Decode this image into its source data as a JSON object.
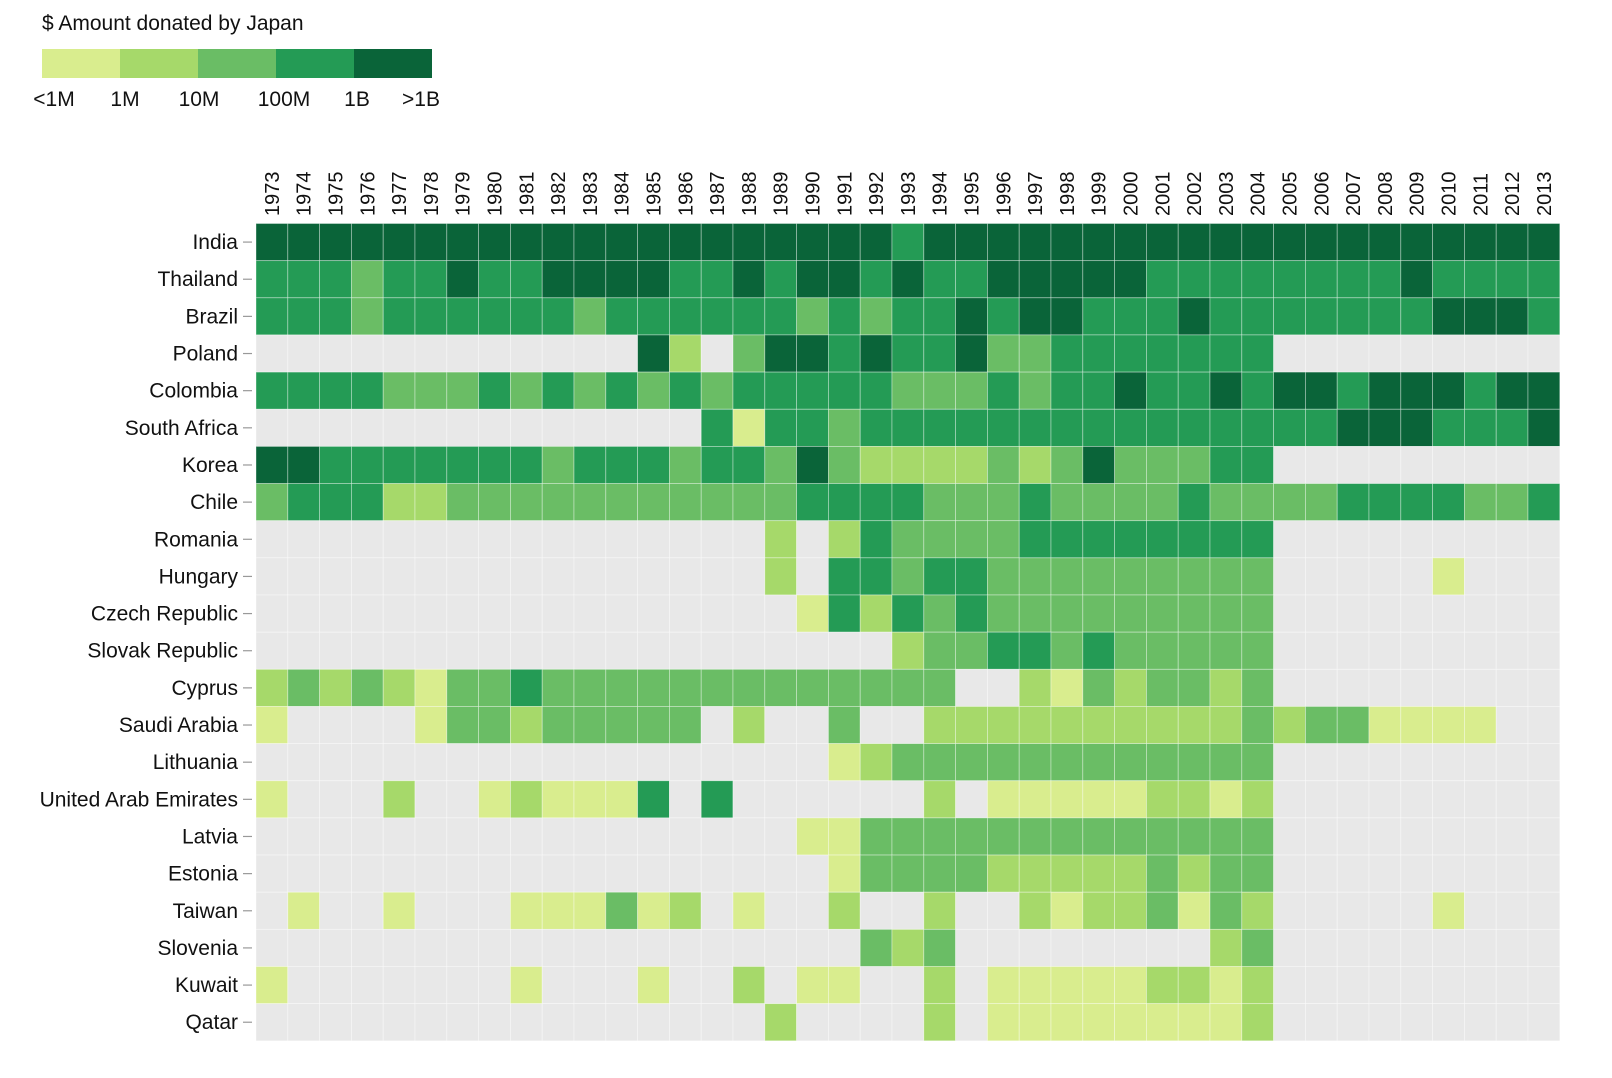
{
  "chart_data": {
    "type": "heatmap",
    "legend": {
      "title": "$ Amount donated by Japan",
      "labels": [
        "<1M",
        "1M",
        "10M",
        "100M",
        "1B",
        ">1B"
      ],
      "colors": [
        "#d9ed8e",
        "#a6d96a",
        "#6abd65",
        "#249b55",
        "#0a6439"
      ],
      "empty_color": "#e8e8e8"
    },
    "years": [
      "1973",
      "1974",
      "1975",
      "1976",
      "1977",
      "1978",
      "1979",
      "1980",
      "1981",
      "1982",
      "1983",
      "1984",
      "1985",
      "1986",
      "1987",
      "1988",
      "1989",
      "1990",
      "1991",
      "1992",
      "1993",
      "1994",
      "1995",
      "1996",
      "1997",
      "1998",
      "1999",
      "2000",
      "2001",
      "2002",
      "2003",
      "2004",
      "2005",
      "2006",
      "2007",
      "2008",
      "2009",
      "2010",
      "2011",
      "2012",
      "2013"
    ],
    "value_encoding": "0 = no data, 1 = <1M, 2 = 1M-10M, 3 = 10M-100M, 4 = 100M-1B, 5 = >1B",
    "rows": [
      {
        "country": "India",
        "values": [
          5,
          5,
          5,
          5,
          5,
          5,
          5,
          5,
          5,
          5,
          5,
          5,
          5,
          5,
          5,
          5,
          5,
          5,
          5,
          5,
          4,
          5,
          5,
          5,
          5,
          5,
          5,
          5,
          5,
          5,
          5,
          5,
          5,
          5,
          5,
          5,
          5,
          5,
          5,
          5,
          5
        ]
      },
      {
        "country": "Thailand",
        "values": [
          4,
          4,
          4,
          3,
          4,
          4,
          5,
          4,
          4,
          5,
          5,
          5,
          5,
          4,
          4,
          5,
          4,
          5,
          5,
          4,
          5,
          4,
          4,
          5,
          5,
          5,
          5,
          5,
          4,
          4,
          4,
          4,
          4,
          4,
          4,
          4,
          5,
          4,
          4,
          4,
          4
        ]
      },
      {
        "country": "Brazil",
        "values": [
          4,
          4,
          4,
          3,
          4,
          4,
          4,
          4,
          4,
          4,
          3,
          4,
          4,
          4,
          4,
          4,
          4,
          3,
          4,
          3,
          4,
          4,
          5,
          4,
          5,
          5,
          4,
          4,
          4,
          5,
          4,
          4,
          4,
          4,
          4,
          4,
          4,
          5,
          5,
          5,
          4
        ]
      },
      {
        "country": "Poland",
        "values": [
          0,
          0,
          0,
          0,
          0,
          0,
          0,
          0,
          0,
          0,
          0,
          0,
          5,
          2,
          0,
          3,
          5,
          5,
          4,
          5,
          4,
          4,
          5,
          3,
          3,
          4,
          4,
          4,
          4,
          4,
          4,
          4,
          0,
          0,
          0,
          0,
          0,
          0,
          0,
          0,
          0
        ]
      },
      {
        "country": "Colombia",
        "values": [
          4,
          4,
          4,
          4,
          3,
          3,
          3,
          4,
          3,
          4,
          3,
          4,
          3,
          4,
          3,
          4,
          4,
          4,
          4,
          4,
          3,
          3,
          3,
          4,
          3,
          4,
          4,
          5,
          4,
          4,
          5,
          4,
          5,
          5,
          4,
          5,
          5,
          5,
          4,
          5,
          5
        ]
      },
      {
        "country": "South Africa",
        "values": [
          0,
          0,
          0,
          0,
          0,
          0,
          0,
          0,
          0,
          0,
          0,
          0,
          0,
          0,
          4,
          1,
          4,
          4,
          3,
          4,
          4,
          4,
          4,
          4,
          4,
          4,
          4,
          4,
          4,
          4,
          4,
          4,
          4,
          4,
          5,
          5,
          5,
          4,
          4,
          4,
          5
        ]
      },
      {
        "country": "Korea",
        "values": [
          5,
          5,
          4,
          4,
          4,
          4,
          4,
          4,
          4,
          3,
          4,
          4,
          4,
          3,
          4,
          4,
          3,
          5,
          3,
          2,
          2,
          2,
          2,
          3,
          2,
          3,
          5,
          3,
          3,
          3,
          4,
          4,
          0,
          0,
          0,
          0,
          0,
          0,
          0,
          0,
          0
        ]
      },
      {
        "country": "Chile",
        "values": [
          3,
          4,
          4,
          4,
          2,
          2,
          3,
          3,
          3,
          3,
          3,
          3,
          3,
          3,
          3,
          3,
          3,
          4,
          4,
          4,
          4,
          3,
          3,
          3,
          4,
          3,
          3,
          3,
          3,
          4,
          3,
          3,
          3,
          3,
          4,
          4,
          4,
          4,
          3,
          3,
          4
        ]
      },
      {
        "country": "Romania",
        "values": [
          0,
          0,
          0,
          0,
          0,
          0,
          0,
          0,
          0,
          0,
          0,
          0,
          0,
          0,
          0,
          0,
          2,
          0,
          2,
          4,
          3,
          3,
          3,
          3,
          4,
          4,
          4,
          4,
          4,
          4,
          4,
          4,
          0,
          0,
          0,
          0,
          0,
          0,
          0,
          0,
          0
        ]
      },
      {
        "country": "Hungary",
        "values": [
          0,
          0,
          0,
          0,
          0,
          0,
          0,
          0,
          0,
          0,
          0,
          0,
          0,
          0,
          0,
          0,
          2,
          0,
          4,
          4,
          3,
          4,
          4,
          3,
          3,
          3,
          3,
          3,
          3,
          3,
          3,
          3,
          0,
          0,
          0,
          0,
          0,
          1,
          0,
          0,
          0
        ]
      },
      {
        "country": "Czech Republic",
        "values": [
          0,
          0,
          0,
          0,
          0,
          0,
          0,
          0,
          0,
          0,
          0,
          0,
          0,
          0,
          0,
          0,
          0,
          1,
          4,
          2,
          4,
          3,
          4,
          3,
          3,
          3,
          3,
          3,
          3,
          3,
          3,
          3,
          0,
          0,
          0,
          0,
          0,
          0,
          0,
          0,
          0
        ]
      },
      {
        "country": "Slovak Republic",
        "values": [
          0,
          0,
          0,
          0,
          0,
          0,
          0,
          0,
          0,
          0,
          0,
          0,
          0,
          0,
          0,
          0,
          0,
          0,
          0,
          0,
          2,
          3,
          3,
          4,
          4,
          3,
          4,
          3,
          3,
          3,
          3,
          3,
          0,
          0,
          0,
          0,
          0,
          0,
          0,
          0,
          0
        ]
      },
      {
        "country": "Cyprus",
        "values": [
          2,
          3,
          2,
          3,
          2,
          1,
          3,
          3,
          4,
          3,
          3,
          3,
          3,
          3,
          3,
          3,
          3,
          3,
          3,
          3,
          3,
          3,
          0,
          0,
          2,
          1,
          3,
          2,
          3,
          3,
          2,
          3,
          0,
          0,
          0,
          0,
          0,
          0,
          0,
          0,
          0
        ]
      },
      {
        "country": "Saudi Arabia",
        "values": [
          1,
          0,
          0,
          0,
          0,
          1,
          3,
          3,
          2,
          3,
          3,
          3,
          3,
          3,
          0,
          2,
          0,
          0,
          3,
          0,
          0,
          2,
          2,
          2,
          2,
          2,
          2,
          2,
          2,
          2,
          2,
          3,
          2,
          3,
          3,
          1,
          1,
          1,
          1,
          0,
          0
        ]
      },
      {
        "country": "Lithuania",
        "values": [
          0,
          0,
          0,
          0,
          0,
          0,
          0,
          0,
          0,
          0,
          0,
          0,
          0,
          0,
          0,
          0,
          0,
          0,
          1,
          2,
          3,
          3,
          3,
          3,
          3,
          3,
          3,
          3,
          3,
          3,
          3,
          3,
          0,
          0,
          0,
          0,
          0,
          0,
          0,
          0,
          0
        ]
      },
      {
        "country": "United Arab Emirates",
        "values": [
          1,
          0,
          0,
          0,
          2,
          0,
          0,
          1,
          2,
          1,
          1,
          1,
          4,
          0,
          4,
          0,
          0,
          0,
          0,
          0,
          0,
          2,
          0,
          1,
          1,
          1,
          1,
          1,
          2,
          2,
          1,
          2,
          0,
          0,
          0,
          0,
          0,
          0,
          0,
          0,
          0
        ]
      },
      {
        "country": "Latvia",
        "values": [
          0,
          0,
          0,
          0,
          0,
          0,
          0,
          0,
          0,
          0,
          0,
          0,
          0,
          0,
          0,
          0,
          0,
          1,
          1,
          3,
          3,
          3,
          3,
          3,
          3,
          3,
          3,
          3,
          3,
          3,
          3,
          3,
          0,
          0,
          0,
          0,
          0,
          0,
          0,
          0,
          0
        ]
      },
      {
        "country": "Estonia",
        "values": [
          0,
          0,
          0,
          0,
          0,
          0,
          0,
          0,
          0,
          0,
          0,
          0,
          0,
          0,
          0,
          0,
          0,
          0,
          1,
          3,
          3,
          3,
          3,
          2,
          2,
          2,
          2,
          2,
          3,
          2,
          3,
          3,
          0,
          0,
          0,
          0,
          0,
          0,
          0,
          0,
          0
        ]
      },
      {
        "country": "Taiwan",
        "values": [
          0,
          1,
          0,
          0,
          1,
          0,
          0,
          0,
          1,
          1,
          1,
          3,
          1,
          2,
          0,
          1,
          0,
          0,
          2,
          0,
          0,
          2,
          0,
          0,
          2,
          1,
          2,
          2,
          3,
          1,
          3,
          2,
          0,
          0,
          0,
          0,
          0,
          1,
          0,
          0,
          0
        ]
      },
      {
        "country": "Slovenia",
        "values": [
          0,
          0,
          0,
          0,
          0,
          0,
          0,
          0,
          0,
          0,
          0,
          0,
          0,
          0,
          0,
          0,
          0,
          0,
          0,
          3,
          2,
          3,
          0,
          0,
          0,
          0,
          0,
          0,
          0,
          0,
          2,
          3,
          0,
          0,
          0,
          0,
          0,
          0,
          0,
          0,
          0
        ]
      },
      {
        "country": "Kuwait",
        "values": [
          1,
          0,
          0,
          0,
          0,
          0,
          0,
          0,
          1,
          0,
          0,
          0,
          1,
          0,
          0,
          2,
          0,
          1,
          1,
          0,
          0,
          2,
          0,
          1,
          1,
          1,
          1,
          1,
          2,
          2,
          1,
          2,
          0,
          0,
          0,
          0,
          0,
          0,
          0,
          0,
          0
        ]
      },
      {
        "country": "Qatar",
        "values": [
          0,
          0,
          0,
          0,
          0,
          0,
          0,
          0,
          0,
          0,
          0,
          0,
          0,
          0,
          0,
          0,
          2,
          0,
          0,
          0,
          0,
          2,
          0,
          1,
          1,
          1,
          1,
          1,
          1,
          1,
          1,
          2,
          0,
          0,
          0,
          0,
          0,
          0,
          0,
          0,
          0
        ]
      }
    ]
  }
}
